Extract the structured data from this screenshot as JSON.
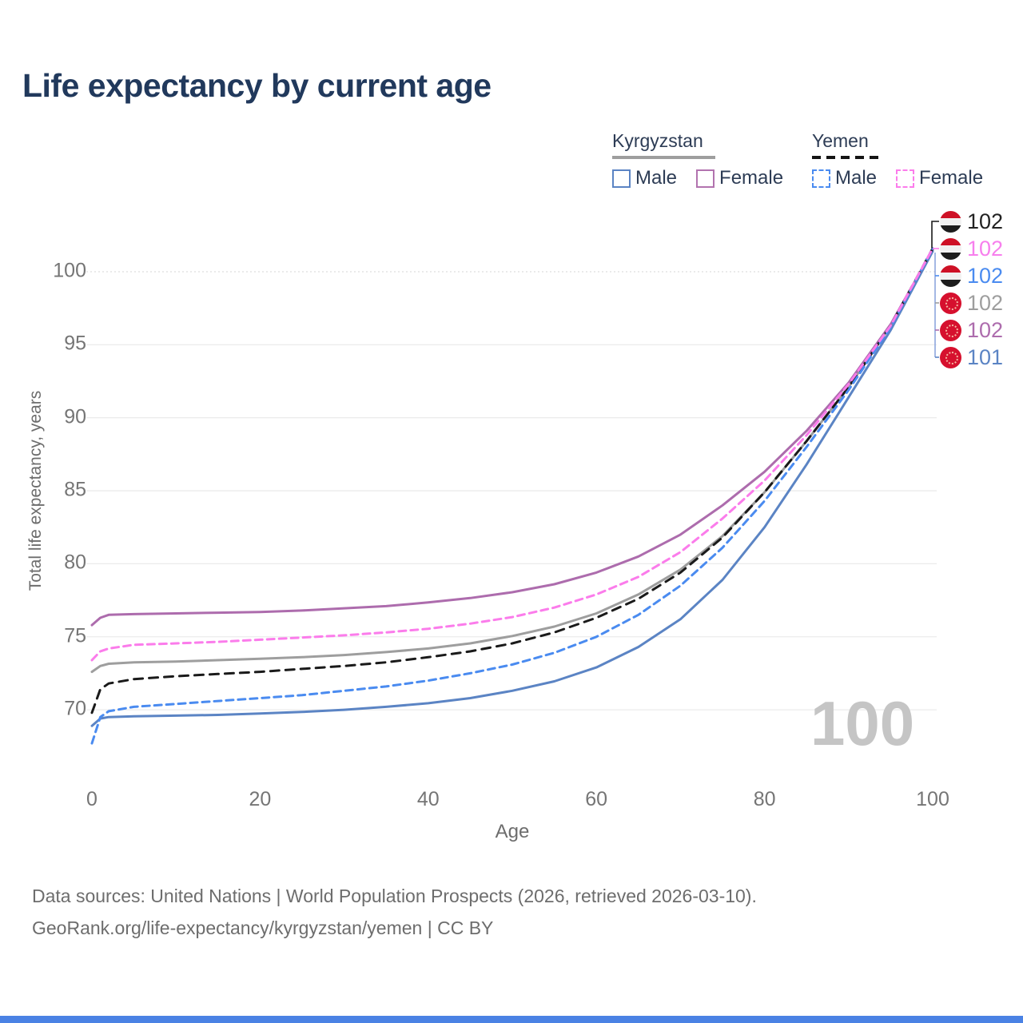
{
  "title": "Life expectancy by current age",
  "legend": {
    "groups": [
      {
        "name": "Kyrgyzstan",
        "line_style": "solid",
        "items": [
          {
            "label": "Male",
            "color": "#5b84c4",
            "dashed": false
          },
          {
            "label": "Female",
            "color": "#b273af",
            "dashed": false
          }
        ]
      },
      {
        "name": "Yemen",
        "line_style": "dashed",
        "items": [
          {
            "label": "Male",
            "color": "#4a8bf0",
            "dashed": true
          },
          {
            "label": "Female",
            "color": "#fb7ceb",
            "dashed": true
          }
        ]
      }
    ]
  },
  "watermark_age": "100",
  "footer": {
    "line1": "Data sources: United Nations | World Population Prospects (2026, retrieved 2026-03-10).",
    "line2": "GeoRank.org/life-expectancy/kyrgyzstan/yemen | CC BY"
  },
  "chart_data": {
    "type": "line",
    "title": "Life expectancy by current age",
    "xlabel": "Age",
    "ylabel": "Total life expectancy, years",
    "xlim": [
      0,
      100
    ],
    "ylim": [
      67,
      103
    ],
    "x_ticks": [
      0,
      20,
      40,
      60,
      80,
      100
    ],
    "y_ticks": [
      70,
      75,
      80,
      85,
      90,
      95,
      100
    ],
    "grid": true,
    "legend_position": "top-right",
    "ages": [
      0,
      1,
      2,
      5,
      10,
      15,
      20,
      25,
      30,
      35,
      40,
      45,
      50,
      55,
      60,
      65,
      70,
      75,
      80,
      85,
      90,
      95,
      100
    ],
    "series": [
      {
        "id": "kyrgyzstan-total",
        "country": "Kyrgyzstan",
        "sex": "Both",
        "color": "#9e9e9e",
        "dashed": false,
        "values": [
          72.6,
          73.0,
          73.15,
          73.25,
          73.3,
          73.4,
          73.5,
          73.6,
          73.75,
          73.95,
          74.2,
          74.55,
          75.05,
          75.7,
          76.6,
          77.9,
          79.6,
          81.9,
          84.9,
          88.4,
          92.1,
          96.3,
          101.5
        ]
      },
      {
        "id": "kyrgyzstan-female",
        "country": "Kyrgyzstan",
        "sex": "Female",
        "color": "#ad6cad",
        "dashed": false,
        "values": [
          75.8,
          76.3,
          76.5,
          76.55,
          76.6,
          76.65,
          76.7,
          76.8,
          76.95,
          77.1,
          77.35,
          77.65,
          78.05,
          78.6,
          79.4,
          80.5,
          82.0,
          84.0,
          86.3,
          89.1,
          92.4,
          96.4,
          101.5
        ]
      },
      {
        "id": "kyrgyzstan-male",
        "country": "Kyrgyzstan",
        "sex": "Male",
        "color": "#5b84c4",
        "dashed": false,
        "values": [
          68.9,
          69.4,
          69.5,
          69.55,
          69.6,
          69.65,
          69.75,
          69.85,
          70.0,
          70.2,
          70.45,
          70.8,
          71.3,
          71.95,
          72.9,
          74.3,
          76.2,
          78.9,
          82.5,
          86.8,
          91.4,
          96.0,
          101.4
        ]
      },
      {
        "id": "yemen-total",
        "country": "Yemen",
        "sex": "Both",
        "color": "#1a1a1a",
        "dashed": true,
        "values": [
          69.8,
          71.4,
          71.8,
          72.1,
          72.3,
          72.45,
          72.6,
          72.8,
          73.0,
          73.25,
          73.6,
          74.0,
          74.55,
          75.3,
          76.3,
          77.6,
          79.4,
          81.8,
          84.9,
          88.4,
          92.1,
          96.3,
          101.6
        ]
      },
      {
        "id": "yemen-male",
        "country": "Yemen",
        "sex": "Male",
        "color": "#4a8bf0",
        "dashed": true,
        "values": [
          67.7,
          69.5,
          69.9,
          70.2,
          70.4,
          70.6,
          70.8,
          71.0,
          71.3,
          71.6,
          72.0,
          72.5,
          73.1,
          73.9,
          75.0,
          76.5,
          78.5,
          81.1,
          84.3,
          88.0,
          91.9,
          96.2,
          101.6
        ]
      },
      {
        "id": "yemen-female",
        "country": "Yemen",
        "sex": "Female",
        "color": "#fb7ceb",
        "dashed": true,
        "values": [
          73.4,
          74.0,
          74.2,
          74.45,
          74.55,
          74.65,
          74.8,
          74.95,
          75.1,
          75.3,
          75.55,
          75.9,
          76.35,
          77.0,
          77.9,
          79.1,
          80.8,
          83.1,
          85.7,
          88.8,
          92.3,
          96.3,
          101.6
        ]
      }
    ],
    "end_labels": [
      {
        "series": "yemen-total",
        "flag": "yemen",
        "value": "102",
        "color": "#222222"
      },
      {
        "series": "yemen-female",
        "flag": "yemen",
        "value": "102",
        "color": "#f77fed"
      },
      {
        "series": "yemen-male",
        "flag": "yemen",
        "value": "102",
        "color": "#4a8bf0"
      },
      {
        "series": "kyrgyzstan-total",
        "flag": "kyrgyzstan",
        "value": "102",
        "color": "#9e9e9e"
      },
      {
        "series": "kyrgyzstan-female",
        "flag": "kyrgyzstan",
        "value": "102",
        "color": "#ad6cad"
      },
      {
        "series": "kyrgyzstan-male",
        "flag": "kyrgyzstan",
        "value": "101",
        "color": "#5b84c4"
      }
    ],
    "colors": {
      "grid": "#ebebeb",
      "grid_top_dotted": "#dddddd",
      "connector_vertical": "#8ea6dd"
    }
  }
}
